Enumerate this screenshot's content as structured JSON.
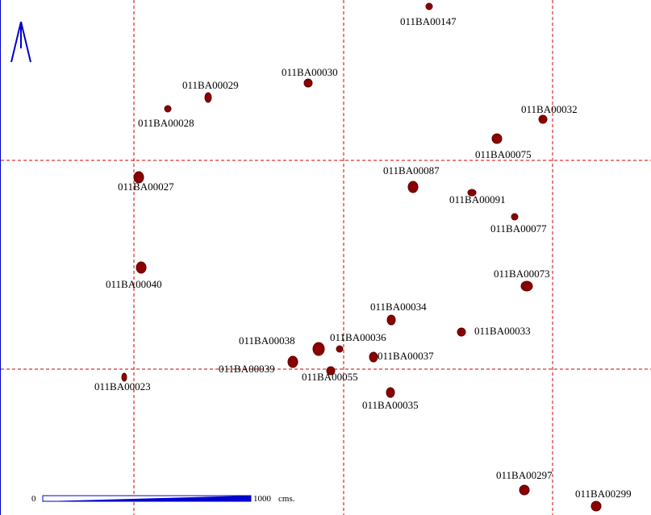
{
  "map": {
    "colors": {
      "grid": "#cc0000",
      "point": "#8b0000",
      "point_stroke": "#5a0000",
      "scale": "#0000cc",
      "north": "#0000cc",
      "border": "#0000cc"
    },
    "scale_bar": {
      "start_label": "0",
      "end_label": "1000",
      "unit_label": "cms."
    },
    "north_arrow": {
      "icon": "north-arrow-icon"
    },
    "wells": [
      {
        "id": "011BA00147"
      },
      {
        "id": "011BA00030"
      },
      {
        "id": "011BA00029"
      },
      {
        "id": "011BA00028"
      },
      {
        "id": "011BA00032"
      },
      {
        "id": "011BA00075"
      },
      {
        "id": "011BA00087"
      },
      {
        "id": "011BA00027"
      },
      {
        "id": "011BA00091"
      },
      {
        "id": "011BA00077"
      },
      {
        "id": "011BA00040"
      },
      {
        "id": "011BA00073"
      },
      {
        "id": "011BA00034"
      },
      {
        "id": "011BA00033"
      },
      {
        "id": "011BA00038"
      },
      {
        "id": "011BA00036"
      },
      {
        "id": "011BA00037"
      },
      {
        "id": "011BA00039"
      },
      {
        "id": "011BA00055"
      },
      {
        "id": "011BA00023"
      },
      {
        "id": "011BA00035"
      },
      {
        "id": "011BA00297"
      },
      {
        "id": "011BA00299"
      }
    ]
  }
}
